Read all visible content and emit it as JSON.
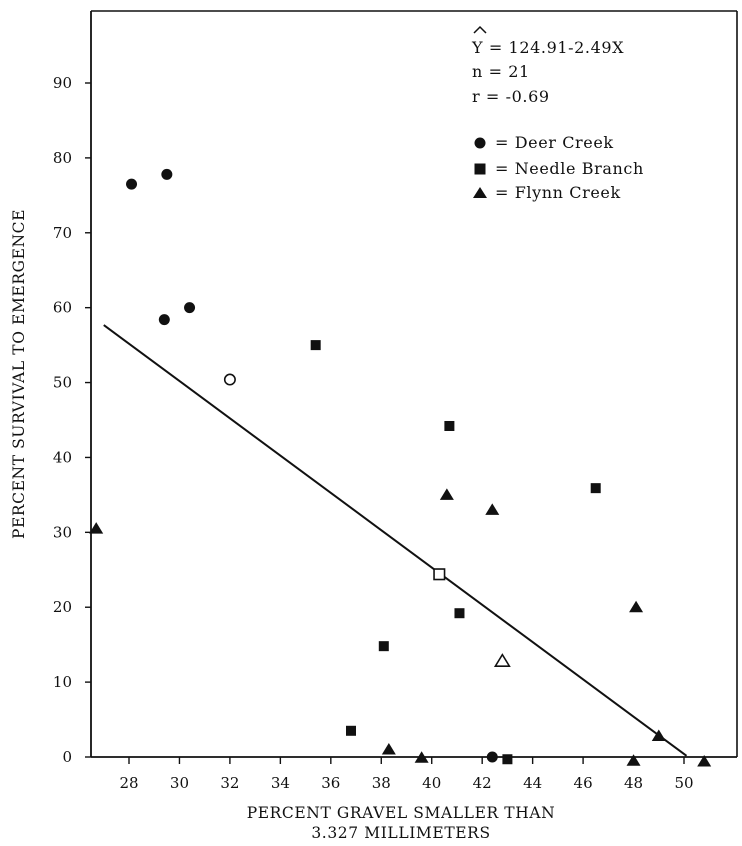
{
  "chart_data": {
    "type": "scatter",
    "xlabel_line1": "PERCENT GRAVEL SMALLER THAN",
    "xlabel_line2": "3.327 MILLIMETERS",
    "ylabel": "PERCENT SURVIVAL TO EMERGENCE",
    "xlim": [
      25.7,
      51.8
    ],
    "ylim": [
      0,
      100
    ],
    "xticks": [
      28,
      30,
      32,
      34,
      36,
      38,
      40,
      42,
      44,
      46,
      48,
      50
    ],
    "yticks": [
      0,
      10,
      20,
      30,
      40,
      50,
      60,
      70,
      80,
      90
    ],
    "grid": false,
    "legend_position": "top-right",
    "annotations": {
      "equation": "Y = 124.91-2.49X",
      "n": "n = 21",
      "r": "r = -0.69"
    },
    "regression": {
      "intercept": 124.91,
      "slope": -2.49,
      "x_range": [
        27.0,
        50.1
      ]
    },
    "series": [
      {
        "name": "Deer Creek",
        "marker": "circle",
        "legend_label": "= Deer Creek",
        "points": [
          {
            "x": 28.1,
            "y": 76.5
          },
          {
            "x": 29.5,
            "y": 77.8
          },
          {
            "x": 29.4,
            "y": 58.4
          },
          {
            "x": 30.4,
            "y": 60.0
          },
          {
            "x": 42.4,
            "y": 0.0
          }
        ],
        "open_points": [
          {
            "x": 32.0,
            "y": 50.4
          }
        ]
      },
      {
        "name": "Needle Branch",
        "marker": "square",
        "legend_label": "= Needle Branch",
        "points": [
          {
            "x": 35.4,
            "y": 55.0
          },
          {
            "x": 40.7,
            "y": 44.2
          },
          {
            "x": 46.5,
            "y": 35.9
          },
          {
            "x": 41.1,
            "y": 19.2
          },
          {
            "x": 38.1,
            "y": 14.8
          },
          {
            "x": 36.8,
            "y": 3.5
          },
          {
            "x": 43.0,
            "y": -0.3
          }
        ],
        "open_points": [
          {
            "x": 40.3,
            "y": 24.4
          }
        ]
      },
      {
        "name": "Flynn Creek",
        "marker": "triangle",
        "legend_label": "= Flynn Creek",
        "points": [
          {
            "x": 26.7,
            "y": 30.5
          },
          {
            "x": 40.6,
            "y": 35.0
          },
          {
            "x": 42.4,
            "y": 33.0
          },
          {
            "x": 48.1,
            "y": 20.0
          },
          {
            "x": 38.3,
            "y": 1.0
          },
          {
            "x": 39.6,
            "y": -0.1
          },
          {
            "x": 48.0,
            "y": -0.5
          },
          {
            "x": 49.0,
            "y": 2.8
          },
          {
            "x": 50.8,
            "y": -0.6
          }
        ],
        "open_points": [
          {
            "x": 42.8,
            "y": 12.8
          }
        ]
      }
    ]
  }
}
